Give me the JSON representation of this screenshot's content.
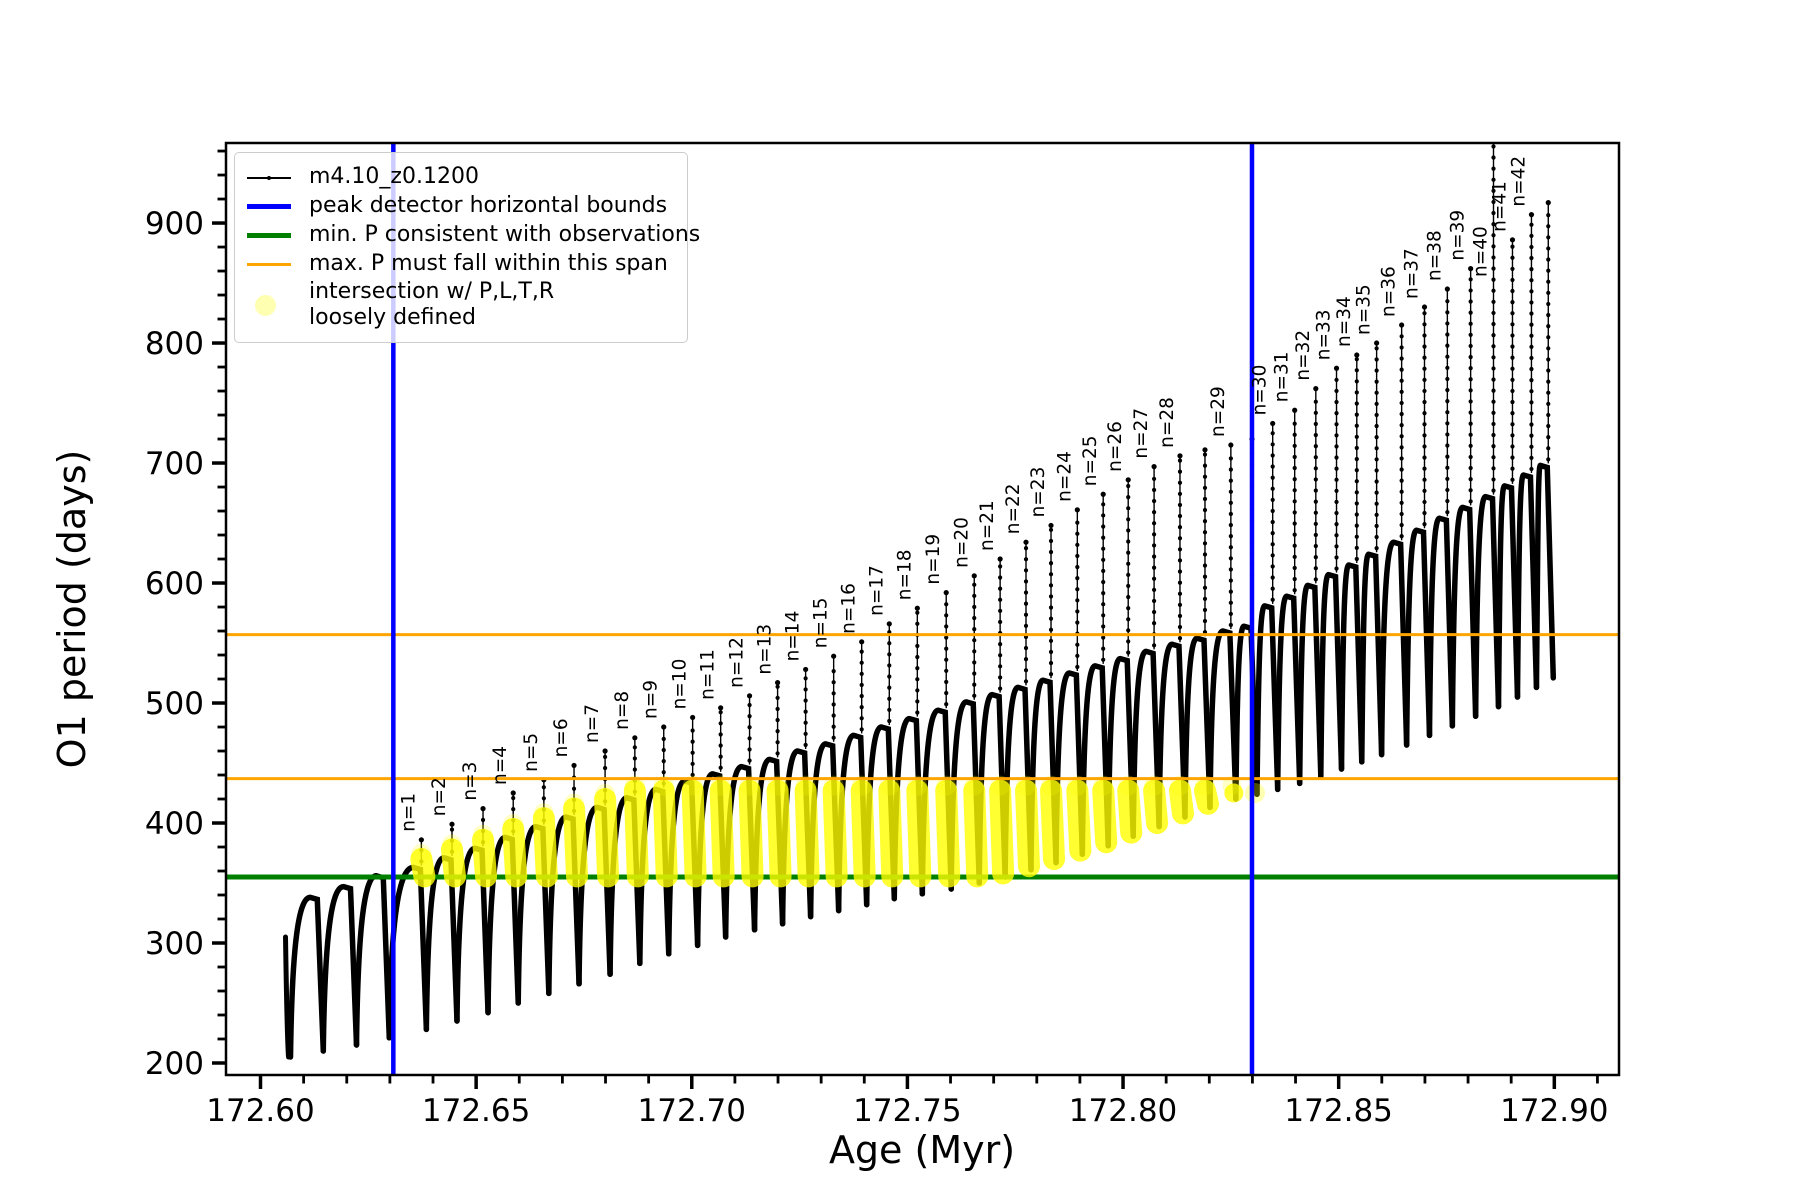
{
  "figure": {
    "background": "#ffffff",
    "frame_color": "#000000"
  },
  "legend": {
    "entries": [
      {
        "id": "series",
        "label": "m4.10_z0.1200",
        "marker": "black-line-dot",
        "color": "#000000"
      },
      {
        "id": "peak-bounds",
        "label": "peak detector horizontal bounds",
        "marker": "thick-line",
        "color": "#0000ff"
      },
      {
        "id": "min-p",
        "label": "min. P consistent with observations",
        "marker": "thick-line",
        "color": "#008000"
      },
      {
        "id": "max-p",
        "label": "max. P must fall within this span",
        "marker": "thin-line",
        "color": "#ffa500"
      },
      {
        "id": "intersection",
        "label_line1": "intersection w/ P,L,T,R",
        "label_line2": "loosely defined",
        "marker": "faint-circle",
        "color": "#ffff00"
      }
    ]
  },
  "chart_data": {
    "type": "line",
    "title": "",
    "xlabel": "Age (Myr)",
    "ylabel": "O1 period (days)",
    "xlim": [
      172.592,
      172.915
    ],
    "ylim": [
      190,
      966.7
    ],
    "grid": false,
    "x_tick_values": [
      172.6,
      172.65,
      172.7,
      172.75,
      172.8,
      172.85,
      172.9
    ],
    "x_tick_labels": [
      "172.60",
      "172.65",
      "172.70",
      "172.75",
      "172.80",
      "172.85",
      "172.90"
    ],
    "y_tick_values": [
      200,
      300,
      400,
      500,
      600,
      700,
      800,
      900
    ],
    "y_tick_labels": [
      "200",
      "300",
      "400",
      "500",
      "600",
      "700",
      "800",
      "900"
    ],
    "x_minor_step": 0.01,
    "y_minor_step": 20,
    "series_name": "m4.10_z0.1200",
    "colors": {
      "data": "#000000",
      "peak_bounds": "#0000ff",
      "min_p": "#008000",
      "max_p": "#ffa500",
      "intersection": "#ffff00"
    },
    "blue_vlines_x": [
      172.6308,
      172.8299
    ],
    "green_hline_y": 355,
    "orange_hlines_y": [
      437,
      557
    ],
    "yellow_band_period_range": [
      355,
      428
    ],
    "teeth_format": "[age_Myr, valley_min_days, hump_top_days, spike_peak_days, peak_label, yellow_marker, spike_clipped_at_top]",
    "teeth": [
      [
        172.6058,
        205,
        null,
        null,
        null,
        null,
        false
      ],
      [
        172.6134,
        210,
        338,
        null,
        null,
        null,
        false
      ],
      [
        172.6211,
        215,
        347,
        null,
        null,
        null,
        false
      ],
      [
        172.6287,
        221,
        356,
        null,
        null,
        null,
        false
      ],
      [
        172.6373,
        228,
        363,
        386,
        "n=1",
        "full",
        false
      ],
      [
        172.6444,
        235,
        371,
        399,
        "n=2",
        "full",
        false
      ],
      [
        172.6516,
        242,
        379,
        412,
        "n=3",
        "full",
        false
      ],
      [
        172.6586,
        250,
        388,
        425,
        "n=4",
        "full",
        false
      ],
      [
        172.6657,
        258,
        397,
        436,
        "n=5",
        "full",
        false
      ],
      [
        172.6727,
        266,
        405,
        448,
        "n=6",
        "full",
        false
      ],
      [
        172.6799,
        274,
        413,
        460,
        "n=7",
        "full",
        false
      ],
      [
        172.6868,
        283,
        421,
        471,
        "n=8",
        "full",
        false
      ],
      [
        172.6935,
        291,
        428,
        480,
        "n=9",
        "full",
        false
      ],
      [
        172.7002,
        298,
        435,
        488,
        "n=10",
        "full",
        false
      ],
      [
        172.7067,
        305,
        441,
        496,
        "n=11",
        "full",
        false
      ],
      [
        172.7134,
        311,
        447,
        506,
        "n=12",
        "full",
        false
      ],
      [
        172.7199,
        316,
        453,
        517,
        "n=13",
        "full",
        false
      ],
      [
        172.7264,
        322,
        460,
        528,
        "n=14",
        "full",
        false
      ],
      [
        172.7329,
        327,
        466,
        539,
        "n=15",
        "full",
        false
      ],
      [
        172.7394,
        332,
        473,
        551,
        "n=16",
        "full",
        false
      ],
      [
        172.7458,
        337,
        480,
        566,
        "n=17",
        "full",
        false
      ],
      [
        172.7523,
        341,
        487,
        579,
        "n=18",
        "full",
        false
      ],
      [
        172.759,
        345,
        494,
        592,
        "n=19",
        "full",
        false
      ],
      [
        172.7655,
        350,
        501,
        606,
        "n=20",
        "full",
        false
      ],
      [
        172.7715,
        355,
        507,
        620,
        "n=21",
        "full",
        false
      ],
      [
        172.7775,
        361,
        513,
        634,
        "n=22",
        "full",
        false
      ],
      [
        172.7833,
        367,
        519,
        648,
        "n=23",
        "full",
        false
      ],
      [
        172.7894,
        374,
        525,
        661,
        "n=24",
        "full",
        false
      ],
      [
        172.7954,
        381,
        531,
        674,
        "n=25",
        "full",
        false
      ],
      [
        172.8012,
        389,
        537,
        686,
        "n=26",
        "full",
        false
      ],
      [
        172.8072,
        397,
        543,
        697,
        "n=27",
        "full",
        false
      ],
      [
        172.8132,
        405,
        549,
        706,
        "n=28",
        "full",
        false
      ],
      [
        172.819,
        413,
        554,
        711,
        null,
        "full",
        false
      ],
      [
        172.825,
        420,
        560,
        715,
        "n=29",
        "full",
        false
      ],
      [
        172.8299,
        424,
        564,
        720,
        null,
        "faint",
        false
      ],
      [
        172.8347,
        428,
        581,
        733,
        "n=30",
        null,
        false
      ],
      [
        172.8398,
        433,
        589,
        744,
        "n=31",
        null,
        false
      ],
      [
        172.8447,
        439,
        598,
        762,
        "n=32",
        null,
        false
      ],
      [
        172.8495,
        445,
        607,
        779,
        "n=33",
        null,
        false
      ],
      [
        172.8542,
        451,
        615,
        790,
        "n=34",
        null,
        false
      ],
      [
        172.8588,
        457,
        624,
        800,
        "n=35",
        null,
        false
      ],
      [
        172.8646,
        465,
        634,
        815,
        "n=36",
        null,
        false
      ],
      [
        172.8699,
        473,
        644,
        830,
        "n=37",
        null,
        false
      ],
      [
        172.8752,
        481,
        654,
        845,
        "n=38",
        null,
        false
      ],
      [
        172.8806,
        489,
        663,
        862,
        "n=39",
        null,
        false
      ],
      [
        172.8859,
        497,
        672,
        999,
        "n=40",
        null,
        true
      ],
      [
        172.8903,
        505,
        681,
        886,
        "n=41",
        null,
        false
      ],
      [
        172.8947,
        513,
        690,
        907,
        "n=42",
        null,
        false
      ],
      [
        172.8986,
        521,
        698,
        917,
        null,
        null,
        false
      ]
    ],
    "series_start_point": {
      "x": 172.6058,
      "y": 305
    }
  }
}
